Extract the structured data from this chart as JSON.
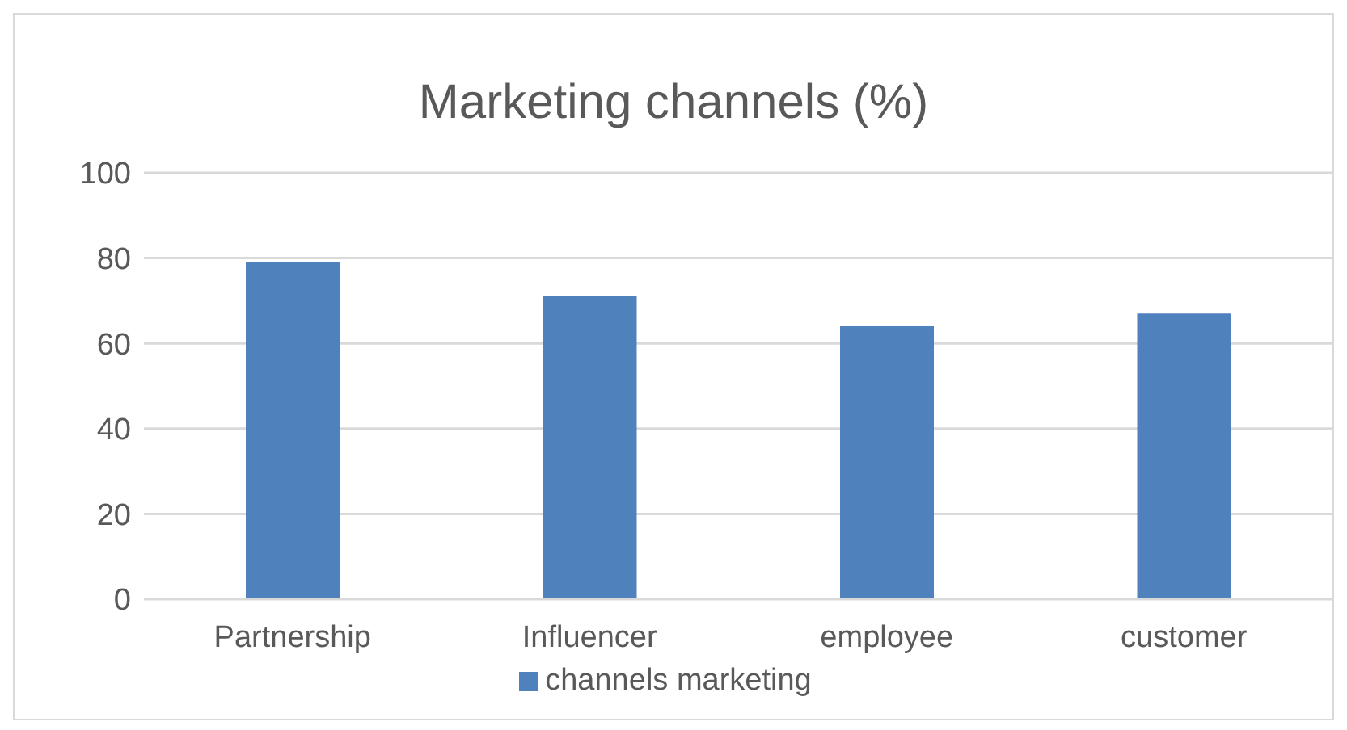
{
  "chart_data": {
    "type": "bar",
    "title": "Marketing channels  (%)",
    "categories": [
      "Partnership",
      "Influencer",
      "employee",
      "customer"
    ],
    "series": [
      {
        "name": "channels marketing",
        "color": "#4f81bd",
        "values": [
          79,
          71,
          64,
          67
        ]
      }
    ],
    "ylim": [
      0,
      100
    ],
    "yticks": [
      0,
      20,
      40,
      60,
      80,
      100
    ],
    "grid": "y",
    "legend": "bottom"
  }
}
